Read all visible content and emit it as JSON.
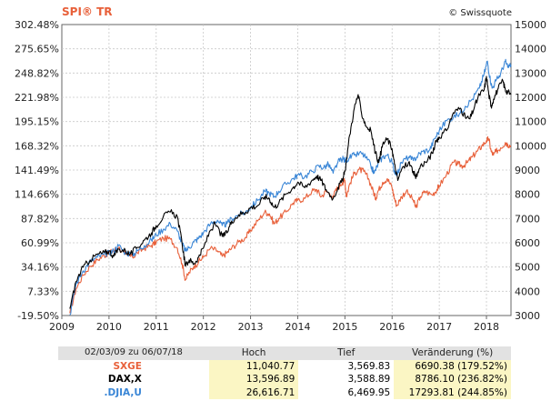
{
  "brand": {
    "title": "SPI® TR",
    "title_color": "#e8603a",
    "copyright": "© Swissquote"
  },
  "chart_data": {
    "type": "line",
    "x_labels": [
      "2009",
      "2010",
      "2011",
      "2012",
      "2013",
      "2014",
      "2015",
      "2016",
      "2017",
      "2018"
    ],
    "x_range": [
      2009.0,
      2018.52
    ],
    "left_axis": {
      "ticks": [
        "302.48%",
        "275.65%",
        "248.82%",
        "221.98%",
        "195.15%",
        "168.32%",
        "141.49%",
        "114.66%",
        "87.82%",
        "60.99%",
        "34.16%",
        "7.33%",
        "-19.50%"
      ],
      "range": [
        -19.5,
        302.48
      ]
    },
    "right_axis": {
      "ticks": [
        "15000",
        "14000",
        "13000",
        "12000",
        "11000",
        "10000",
        "9000",
        "8000",
        "7000",
        "6000",
        "5000",
        "4000",
        "3000"
      ],
      "range": [
        3000,
        15000
      ]
    },
    "grid": true,
    "series": [
      {
        "name": "SXGE",
        "color": "#e8603a",
        "points": [
          [
            2009.17,
            -17
          ],
          [
            2009.3,
            10
          ],
          [
            2009.45,
            25
          ],
          [
            2009.6,
            35
          ],
          [
            2009.75,
            42
          ],
          [
            2009.9,
            47
          ],
          [
            2010.0,
            50
          ],
          [
            2010.1,
            52
          ],
          [
            2010.2,
            56
          ],
          [
            2010.35,
            48
          ],
          [
            2010.5,
            45
          ],
          [
            2010.6,
            50
          ],
          [
            2010.75,
            55
          ],
          [
            2010.9,
            58
          ],
          [
            2011.0,
            62
          ],
          [
            2011.15,
            66
          ],
          [
            2011.3,
            65
          ],
          [
            2011.45,
            55
          ],
          [
            2011.55,
            38
          ],
          [
            2011.62,
            20
          ],
          [
            2011.7,
            28
          ],
          [
            2011.8,
            35
          ],
          [
            2011.9,
            40
          ],
          [
            2012.0,
            45
          ],
          [
            2012.15,
            55
          ],
          [
            2012.3,
            52
          ],
          [
            2012.4,
            46
          ],
          [
            2012.5,
            50
          ],
          [
            2012.6,
            55
          ],
          [
            2012.75,
            62
          ],
          [
            2012.9,
            67
          ],
          [
            2013.0,
            75
          ],
          [
            2013.15,
            85
          ],
          [
            2013.3,
            95
          ],
          [
            2013.4,
            93
          ],
          [
            2013.5,
            82
          ],
          [
            2013.6,
            88
          ],
          [
            2013.75,
            95
          ],
          [
            2013.9,
            105
          ],
          [
            2014.0,
            108
          ],
          [
            2014.15,
            110
          ],
          [
            2014.3,
            118
          ],
          [
            2014.4,
            120
          ],
          [
            2014.5,
            112
          ],
          [
            2014.6,
            118
          ],
          [
            2014.75,
            113
          ],
          [
            2014.85,
            122
          ],
          [
            2014.95,
            128
          ],
          [
            2015.0,
            130
          ],
          [
            2015.03,
            112
          ],
          [
            2015.1,
            126
          ],
          [
            2015.2,
            138
          ],
          [
            2015.3,
            142
          ],
          [
            2015.4,
            140
          ],
          [
            2015.5,
            132
          ],
          [
            2015.6,
            118
          ],
          [
            2015.65,
            110
          ],
          [
            2015.7,
            118
          ],
          [
            2015.8,
            128
          ],
          [
            2015.9,
            132
          ],
          [
            2016.0,
            122
          ],
          [
            2016.05,
            110
          ],
          [
            2016.1,
            102
          ],
          [
            2016.2,
            112
          ],
          [
            2016.3,
            118
          ],
          [
            2016.45,
            108
          ],
          [
            2016.5,
            100
          ],
          [
            2016.6,
            112
          ],
          [
            2016.7,
            118
          ],
          [
            2016.85,
            114
          ],
          [
            2016.95,
            120
          ],
          [
            2017.0,
            124
          ],
          [
            2017.15,
            136
          ],
          [
            2017.3,
            150
          ],
          [
            2017.4,
            148
          ],
          [
            2017.5,
            146
          ],
          [
            2017.6,
            150
          ],
          [
            2017.7,
            156
          ],
          [
            2017.8,
            162
          ],
          [
            2017.9,
            168
          ],
          [
            2018.0,
            174
          ],
          [
            2018.05,
            176
          ],
          [
            2018.1,
            162
          ],
          [
            2018.15,
            158
          ],
          [
            2018.2,
            162
          ],
          [
            2018.3,
            166
          ],
          [
            2018.4,
            172
          ],
          [
            2018.45,
            170
          ],
          [
            2018.52,
            168
          ]
        ]
      },
      {
        "name": "DAX,X",
        "color": "#000000",
        "points": [
          [
            2009.17,
            -12
          ],
          [
            2009.3,
            18
          ],
          [
            2009.45,
            34
          ],
          [
            2009.6,
            42
          ],
          [
            2009.75,
            48
          ],
          [
            2009.9,
            50
          ],
          [
            2010.0,
            52
          ],
          [
            2010.1,
            46
          ],
          [
            2010.2,
            54
          ],
          [
            2010.35,
            52
          ],
          [
            2010.45,
            48
          ],
          [
            2010.6,
            56
          ],
          [
            2010.75,
            64
          ],
          [
            2010.9,
            72
          ],
          [
            2011.0,
            80
          ],
          [
            2011.15,
            90
          ],
          [
            2011.3,
            95
          ],
          [
            2011.45,
            90
          ],
          [
            2011.55,
            60
          ],
          [
            2011.62,
            35
          ],
          [
            2011.7,
            42
          ],
          [
            2011.8,
            38
          ],
          [
            2011.9,
            45
          ],
          [
            2012.0,
            55
          ],
          [
            2012.15,
            75
          ],
          [
            2012.25,
            82
          ],
          [
            2012.4,
            68
          ],
          [
            2012.5,
            72
          ],
          [
            2012.6,
            85
          ],
          [
            2012.75,
            92
          ],
          [
            2012.9,
            95
          ],
          [
            2013.0,
            100
          ],
          [
            2013.15,
            102
          ],
          [
            2013.3,
            112
          ],
          [
            2013.4,
            110
          ],
          [
            2013.5,
            100
          ],
          [
            2013.6,
            105
          ],
          [
            2013.75,
            115
          ],
          [
            2013.9,
            122
          ],
          [
            2014.0,
            128
          ],
          [
            2014.15,
            122
          ],
          [
            2014.3,
            130
          ],
          [
            2014.4,
            135
          ],
          [
            2014.5,
            130
          ],
          [
            2014.6,
            120
          ],
          [
            2014.75,
            110
          ],
          [
            2014.85,
            122
          ],
          [
            2014.95,
            130
          ],
          [
            2015.0,
            140
          ],
          [
            2015.1,
            180
          ],
          [
            2015.2,
            210
          ],
          [
            2015.28,
            225
          ],
          [
            2015.35,
            205
          ],
          [
            2015.45,
            190
          ],
          [
            2015.55,
            185
          ],
          [
            2015.65,
            160
          ],
          [
            2015.72,
            150
          ],
          [
            2015.8,
            170
          ],
          [
            2015.9,
            176
          ],
          [
            2016.0,
            165
          ],
          [
            2016.05,
            148
          ],
          [
            2016.12,
            130
          ],
          [
            2016.2,
            142
          ],
          [
            2016.35,
            150
          ],
          [
            2016.45,
            140
          ],
          [
            2016.5,
            132
          ],
          [
            2016.6,
            146
          ],
          [
            2016.75,
            152
          ],
          [
            2016.85,
            160
          ],
          [
            2016.95,
            175
          ],
          [
            2017.0,
            178
          ],
          [
            2017.15,
            185
          ],
          [
            2017.3,
            205
          ],
          [
            2017.45,
            210
          ],
          [
            2017.55,
            200
          ],
          [
            2017.65,
            198
          ],
          [
            2017.75,
            212
          ],
          [
            2017.85,
            225
          ],
          [
            2017.95,
            230
          ],
          [
            2018.0,
            245
          ],
          [
            2018.05,
            225
          ],
          [
            2018.1,
            212
          ],
          [
            2018.15,
            220
          ],
          [
            2018.25,
            232
          ],
          [
            2018.35,
            240
          ],
          [
            2018.4,
            230
          ],
          [
            2018.45,
            228
          ],
          [
            2018.52,
            225
          ]
        ]
      },
      {
        "name": ".DJIA,U",
        "color": "#3a86d6",
        "points": [
          [
            2009.17,
            -19
          ],
          [
            2009.3,
            15
          ],
          [
            2009.45,
            30
          ],
          [
            2009.6,
            40
          ],
          [
            2009.75,
            45
          ],
          [
            2009.9,
            48
          ],
          [
            2010.0,
            50
          ],
          [
            2010.1,
            52
          ],
          [
            2010.2,
            58
          ],
          [
            2010.35,
            50
          ],
          [
            2010.5,
            48
          ],
          [
            2010.6,
            52
          ],
          [
            2010.75,
            58
          ],
          [
            2010.9,
            64
          ],
          [
            2011.0,
            70
          ],
          [
            2011.15,
            76
          ],
          [
            2011.3,
            82
          ],
          [
            2011.45,
            74
          ],
          [
            2011.55,
            60
          ],
          [
            2011.62,
            52
          ],
          [
            2011.7,
            56
          ],
          [
            2011.8,
            62
          ],
          [
            2011.9,
            66
          ],
          [
            2012.0,
            72
          ],
          [
            2012.15,
            82
          ],
          [
            2012.3,
            86
          ],
          [
            2012.4,
            80
          ],
          [
            2012.5,
            82
          ],
          [
            2012.6,
            88
          ],
          [
            2012.75,
            92
          ],
          [
            2012.9,
            95
          ],
          [
            2013.0,
            100
          ],
          [
            2013.15,
            108
          ],
          [
            2013.3,
            118
          ],
          [
            2013.4,
            116
          ],
          [
            2013.5,
            112
          ],
          [
            2013.6,
            118
          ],
          [
            2013.75,
            126
          ],
          [
            2013.9,
            132
          ],
          [
            2014.0,
            136
          ],
          [
            2014.15,
            134
          ],
          [
            2014.3,
            140
          ],
          [
            2014.45,
            146
          ],
          [
            2014.55,
            144
          ],
          [
            2014.65,
            148
          ],
          [
            2014.75,
            138
          ],
          [
            2014.85,
            150
          ],
          [
            2014.95,
            154
          ],
          [
            2015.0,
            152
          ],
          [
            2015.1,
            155
          ],
          [
            2015.2,
            158
          ],
          [
            2015.35,
            160
          ],
          [
            2015.45,
            155
          ],
          [
            2015.55,
            146
          ],
          [
            2015.62,
            138
          ],
          [
            2015.7,
            148
          ],
          [
            2015.8,
            156
          ],
          [
            2015.9,
            158
          ],
          [
            2016.0,
            150
          ],
          [
            2016.05,
            140
          ],
          [
            2016.12,
            138
          ],
          [
            2016.2,
            150
          ],
          [
            2016.35,
            156
          ],
          [
            2016.45,
            152
          ],
          [
            2016.55,
            158
          ],
          [
            2016.65,
            162
          ],
          [
            2016.8,
            164
          ],
          [
            2016.9,
            176
          ],
          [
            2017.0,
            185
          ],
          [
            2017.15,
            196
          ],
          [
            2017.3,
            200
          ],
          [
            2017.45,
            205
          ],
          [
            2017.55,
            212
          ],
          [
            2017.7,
            220
          ],
          [
            2017.85,
            232
          ],
          [
            2017.95,
            248
          ],
          [
            2018.02,
            262
          ],
          [
            2018.07,
            245
          ],
          [
            2018.12,
            232
          ],
          [
            2018.2,
            240
          ],
          [
            2018.3,
            248
          ],
          [
            2018.4,
            262
          ],
          [
            2018.45,
            255
          ],
          [
            2018.52,
            258
          ]
        ]
      }
    ]
  },
  "table": {
    "header": [
      "02/03/09 zu 06/07/18",
      "Hoch",
      "Tief",
      "Veränderung (%)"
    ],
    "rows": [
      {
        "name": "SXGE",
        "color": "#e8603a",
        "high": "11,040.77",
        "low": "3,569.83",
        "change": "6690.38 (179.52%)"
      },
      {
        "name": "DAX,X",
        "color": "#000000",
        "high": "13,596.89",
        "low": "3,588.89",
        "change": "8786.10 (236.82%)"
      },
      {
        "name": ".DJIA,U",
        "color": "#3a86d6",
        "high": "26,616.71",
        "low": "6,469.95",
        "change": "17293.81 (244.85%)"
      }
    ]
  }
}
